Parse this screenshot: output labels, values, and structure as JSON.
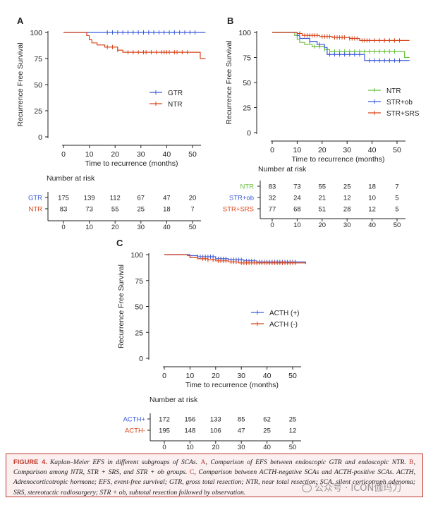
{
  "colors": {
    "blue": "#3a5ad9",
    "red": "#d9431a",
    "green": "#6abf3c",
    "axis": "#222222",
    "caption_accent": "#c0392b"
  },
  "chart_data": [
    {
      "panel": "A",
      "type": "line",
      "ylabel": "Recurrence Free Survival",
      "xlabel": "Time to recurrence (months)",
      "xlim": [
        0,
        55
      ],
      "ylim": [
        0,
        100
      ],
      "xticks": [
        0,
        10,
        20,
        30,
        40,
        50
      ],
      "yticks": [
        0,
        25,
        50,
        75,
        100
      ],
      "grid": false,
      "legend_position": "right",
      "series": [
        {
          "name": "GTR",
          "color": "blue",
          "steps": [
            [
              0,
              100
            ],
            [
              55,
              100
            ]
          ],
          "censors": [
            17,
            19,
            21,
            23,
            25,
            27,
            29,
            31,
            33,
            35,
            37,
            39,
            41,
            43,
            45,
            47,
            49,
            51
          ]
        },
        {
          "name": "NTR",
          "color": "red",
          "steps": [
            [
              0,
              100
            ],
            [
              9,
              97
            ],
            [
              10,
              93
            ],
            [
              11,
              90
            ],
            [
              13,
              88
            ],
            [
              16,
              86
            ],
            [
              21,
              83
            ],
            [
              23,
              81
            ],
            [
              52,
              81
            ],
            [
              53,
              75
            ],
            [
              55,
              75
            ]
          ],
          "censors": [
            17,
            19,
            21,
            25,
            27,
            29,
            31,
            32,
            34,
            36,
            38,
            39,
            40,
            41,
            43,
            44,
            46,
            48
          ]
        }
      ],
      "risk_table": {
        "title": "Number at risk",
        "x": [
          0,
          10,
          20,
          30,
          40,
          50
        ],
        "rows": [
          {
            "label": "GTR",
            "color": "blue",
            "values": [
              "175",
              "139",
              "112",
              "67",
              "47",
              "20"
            ]
          },
          {
            "label": "NTR",
            "color": "red",
            "values": [
              "83",
              "73",
              "55",
              "25",
              "18",
              "7"
            ]
          }
        ]
      }
    },
    {
      "panel": "B",
      "type": "line",
      "ylabel": "Recurrence Free Survival",
      "xlabel": "Time to recurrence (months)",
      "xlim": [
        0,
        55
      ],
      "ylim": [
        0,
        100
      ],
      "xticks": [
        0,
        10,
        20,
        30,
        40,
        50
      ],
      "yticks": [
        0,
        25,
        50,
        75,
        100
      ],
      "grid": false,
      "legend_position": "right",
      "series": [
        {
          "name": "NTR",
          "color": "green",
          "steps": [
            [
              0,
              100
            ],
            [
              9,
              97
            ],
            [
              10,
              93
            ],
            [
              11,
              90
            ],
            [
              13,
              88
            ],
            [
              16,
              86
            ],
            [
              21,
              83
            ],
            [
              23,
              81
            ],
            [
              52,
              81
            ],
            [
              53,
              75
            ],
            [
              55,
              75
            ]
          ],
          "censors": [
            17,
            19,
            21,
            25,
            27,
            29,
            31,
            33,
            35,
            37,
            39,
            41,
            43,
            45,
            47,
            49
          ]
        },
        {
          "name": "STR+ob",
          "color": "blue",
          "steps": [
            [
              0,
              100
            ],
            [
              10,
              97
            ],
            [
              11,
              94
            ],
            [
              15,
              91
            ],
            [
              18,
              88
            ],
            [
              21,
              85
            ],
            [
              22,
              78
            ],
            [
              36,
              78
            ],
            [
              37,
              72
            ],
            [
              55,
              72
            ]
          ],
          "censors": [
            15,
            19,
            23,
            25,
            27,
            29,
            31,
            33,
            35,
            39,
            41,
            43,
            45,
            47,
            49,
            51
          ]
        },
        {
          "name": "STR+SRS",
          "color": "red",
          "steps": [
            [
              0,
              100
            ],
            [
              10,
              99
            ],
            [
              12,
              97
            ],
            [
              19,
              96
            ],
            [
              24,
              95
            ],
            [
              31,
              94
            ],
            [
              35,
              92
            ],
            [
              55,
              92
            ]
          ],
          "censors": [
            11,
            13,
            14,
            15,
            16,
            17,
            18,
            20,
            21,
            22,
            23,
            25,
            26,
            27,
            28,
            29,
            31,
            32,
            33,
            34,
            36,
            37,
            38,
            39,
            41,
            43,
            45,
            47,
            49,
            51
          ]
        }
      ],
      "risk_table": {
        "title": "Number at risk",
        "x": [
          0,
          10,
          20,
          30,
          40,
          50
        ],
        "rows": [
          {
            "label": "NTR",
            "color": "green",
            "values": [
              "83",
              "73",
              "55",
              "25",
              "18",
              "7"
            ]
          },
          {
            "label": "STR+ob",
            "color": "blue",
            "values": [
              "32",
              "24",
              "21",
              "12",
              "10",
              "5"
            ]
          },
          {
            "label": "STR+SRS",
            "color": "red",
            "values": [
              "77",
              "68",
              "51",
              "28",
              "12",
              "5"
            ]
          }
        ]
      }
    },
    {
      "panel": "C",
      "type": "line",
      "ylabel": "Recurrence Free Survival",
      "xlabel": "Time to recurrence (months)",
      "xlim": [
        0,
        55
      ],
      "ylim": [
        0,
        100
      ],
      "xticks": [
        0,
        10,
        20,
        30,
        40,
        50
      ],
      "yticks": [
        0,
        25,
        50,
        75,
        100
      ],
      "grid": false,
      "legend_position": "center-right",
      "series": [
        {
          "name": "ACTH (+)",
          "color": "blue",
          "steps": [
            [
              0,
              100
            ],
            [
              10,
              99
            ],
            [
              13,
              98
            ],
            [
              20,
              96
            ],
            [
              25,
              95
            ],
            [
              31,
              94
            ],
            [
              36,
              93
            ],
            [
              55,
              93
            ],
            [
              55,
              91
            ]
          ],
          "censors": [
            13,
            14,
            15,
            16,
            17,
            18,
            19,
            21,
            22,
            23,
            24,
            26,
            27,
            28,
            29,
            30,
            32,
            33,
            34,
            35,
            37,
            38,
            39,
            40,
            41,
            42,
            43,
            44,
            45,
            46,
            47,
            48,
            49,
            50,
            51
          ]
        },
        {
          "name": "ACTH (-)",
          "color": "red",
          "steps": [
            [
              0,
              100
            ],
            [
              9,
              99
            ],
            [
              10,
              97
            ],
            [
              13,
              96
            ],
            [
              17,
              95
            ],
            [
              20,
              94
            ],
            [
              25,
              93
            ],
            [
              29,
              92
            ],
            [
              55,
              92
            ]
          ],
          "censors": [
            15,
            16,
            17,
            19,
            21,
            22,
            23,
            24,
            26,
            27,
            28,
            30,
            31,
            32,
            33,
            34,
            35,
            36,
            37,
            38,
            39,
            40,
            41,
            42,
            43,
            44,
            45,
            46,
            47,
            48,
            49,
            50,
            51
          ]
        }
      ],
      "risk_table": {
        "title": "Number at risk",
        "x": [
          0,
          10,
          20,
          30,
          40,
          50
        ],
        "rows": [
          {
            "label": "ACTH+",
            "color": "blue",
            "values": [
              "172",
              "156",
              "133",
              "85",
              "62",
              "25"
            ]
          },
          {
            "label": "ACTH-",
            "color": "red",
            "values": [
              "195",
              "148",
              "106",
              "47",
              "25",
              "12"
            ]
          }
        ]
      }
    }
  ],
  "caption": {
    "label": "FIGURE 4.",
    "segments": [
      {
        "text": "Kaplan–Meier EFS in different subgroups of SCAs. ",
        "ref": false
      },
      {
        "text": "A",
        "ref": true
      },
      {
        "text": ", Comparison of EFS between endoscopic GTR and endoscopic NTR. ",
        "ref": false
      },
      {
        "text": "B",
        "ref": true
      },
      {
        "text": ", Comparison among NTR, STR + SRS, and STR + ob groups. ",
        "ref": false
      },
      {
        "text": "C",
        "ref": true
      },
      {
        "text": ", Comparison between ACTH-negative SCAs and ACTH-positive SCAs. ACTH, Adrenocorticotropic hormone; EFS, event-free survival; GTR, gross total resection; NTR, near total resection; SCA, silent corticotroph adenoma; SRS, stereotactic radiosurgery; STR + ob, subtotal resection followed by observation.",
        "ref": false
      }
    ]
  },
  "watermark": "公众号 · ICON伽玛刀"
}
